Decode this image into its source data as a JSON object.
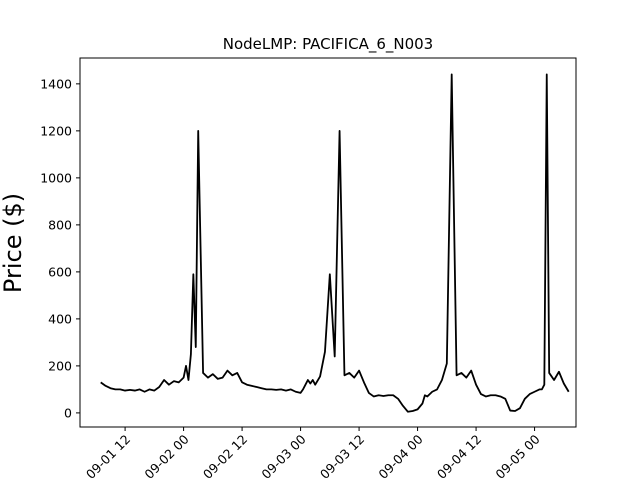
{
  "chart_data": {
    "type": "line",
    "title": "NodeLMP: PACIFICA_6_N003",
    "xlabel": "",
    "ylabel": "Price ($)",
    "grid": false,
    "legend": "none",
    "line_color": "#000000",
    "xlim": [
      "2009-09-01 02:45",
      "2009-09-05 08:30"
    ],
    "ylim": [
      -60,
      1510
    ],
    "yticks": [
      0,
      200,
      400,
      600,
      800,
      1000,
      1200,
      1400
    ],
    "xticks": [
      {
        "t": "2009-09-01 12:00",
        "label": "09-01 12"
      },
      {
        "t": "2009-09-02 00:00",
        "label": "09-02 00"
      },
      {
        "t": "2009-09-02 12:00",
        "label": "09-02 12"
      },
      {
        "t": "2009-09-03 00:00",
        "label": "09-03 00"
      },
      {
        "t": "2009-09-03 12:00",
        "label": "09-03 12"
      },
      {
        "t": "2009-09-04 00:00",
        "label": "09-04 00"
      },
      {
        "t": "2009-09-04 12:00",
        "label": "09-04 12"
      },
      {
        "t": "2009-09-05 00:00",
        "label": "09-05 00"
      }
    ],
    "series": [
      {
        "x": [
          "2009-09-01 07:00",
          "2009-09-01 08:00",
          "2009-09-01 09:00",
          "2009-09-01 10:00",
          "2009-09-01 11:00",
          "2009-09-01 12:00",
          "2009-09-01 13:00",
          "2009-09-01 14:00",
          "2009-09-01 15:00",
          "2009-09-01 16:00",
          "2009-09-01 17:00",
          "2009-09-01 18:00",
          "2009-09-01 19:00",
          "2009-09-01 20:00",
          "2009-09-01 21:00",
          "2009-09-01 22:00",
          "2009-09-01 23:00",
          "2009-09-02 00:00",
          "2009-09-02 00:30",
          "2009-09-02 01:00",
          "2009-09-02 01:30",
          "2009-09-02 02:00",
          "2009-09-02 02:30",
          "2009-09-02 03:00",
          "2009-09-02 04:00",
          "2009-09-02 05:00",
          "2009-09-02 06:00",
          "2009-09-02 07:00",
          "2009-09-02 08:00",
          "2009-09-02 09:00",
          "2009-09-02 10:00",
          "2009-09-02 11:00",
          "2009-09-02 12:00",
          "2009-09-02 13:00",
          "2009-09-02 14:00",
          "2009-09-02 15:00",
          "2009-09-02 16:00",
          "2009-09-02 17:00",
          "2009-09-02 18:00",
          "2009-09-02 19:00",
          "2009-09-02 20:00",
          "2009-09-02 21:00",
          "2009-09-02 22:00",
          "2009-09-02 23:00",
          "2009-09-03 00:00",
          "2009-09-03 00:30",
          "2009-09-03 01:00",
          "2009-09-03 01:30",
          "2009-09-03 02:00",
          "2009-09-03 02:30",
          "2009-09-03 03:00",
          "2009-09-03 04:00",
          "2009-09-03 05:00",
          "2009-09-03 06:00",
          "2009-09-03 07:00",
          "2009-09-03 08:00",
          "2009-09-03 09:00",
          "2009-09-03 10:00",
          "2009-09-03 11:00",
          "2009-09-03 12:00",
          "2009-09-03 13:00",
          "2009-09-03 14:00",
          "2009-09-03 15:00",
          "2009-09-03 16:00",
          "2009-09-03 17:00",
          "2009-09-03 18:00",
          "2009-09-03 19:00",
          "2009-09-03 20:00",
          "2009-09-03 21:00",
          "2009-09-03 22:00",
          "2009-09-03 23:00",
          "2009-09-04 00:00",
          "2009-09-04 01:00",
          "2009-09-04 01:30",
          "2009-09-04 02:00",
          "2009-09-04 02:30",
          "2009-09-04 03:00",
          "2009-09-04 04:00",
          "2009-09-04 05:00",
          "2009-09-04 06:00",
          "2009-09-04 07:00",
          "2009-09-04 08:00",
          "2009-09-04 09:00",
          "2009-09-04 10:00",
          "2009-09-04 11:00",
          "2009-09-04 12:00",
          "2009-09-04 13:00",
          "2009-09-04 14:00",
          "2009-09-04 15:00",
          "2009-09-04 16:00",
          "2009-09-04 17:00",
          "2009-09-04 18:00",
          "2009-09-04 19:00",
          "2009-09-04 20:00",
          "2009-09-04 21:00",
          "2009-09-04 22:00",
          "2009-09-04 23:00",
          "2009-09-05 00:00",
          "2009-09-05 01:00",
          "2009-09-05 01:30",
          "2009-09-05 02:00",
          "2009-09-05 02:30",
          "2009-09-05 03:00",
          "2009-09-05 04:00",
          "2009-09-05 05:00",
          "2009-09-05 06:00",
          "2009-09-05 07:00"
        ],
        "y": [
          130,
          115,
          105,
          100,
          100,
          95,
          98,
          95,
          100,
          90,
          100,
          95,
          110,
          140,
          120,
          135,
          130,
          150,
          200,
          140,
          250,
          590,
          280,
          1200,
          170,
          150,
          165,
          145,
          150,
          180,
          160,
          170,
          130,
          120,
          115,
          110,
          105,
          100,
          100,
          98,
          100,
          95,
          100,
          90,
          85,
          100,
          120,
          140,
          125,
          140,
          120,
          155,
          260,
          590,
          240,
          1200,
          160,
          170,
          150,
          180,
          130,
          85,
          70,
          75,
          72,
          75,
          75,
          60,
          30,
          5,
          8,
          15,
          40,
          75,
          70,
          80,
          90,
          100,
          140,
          210,
          1440,
          160,
          170,
          150,
          180,
          120,
          80,
          70,
          75,
          75,
          70,
          60,
          10,
          8,
          20,
          60,
          80,
          90,
          100,
          100,
          120,
          1440,
          170,
          140,
          175,
          125,
          90
        ]
      }
    ]
  }
}
